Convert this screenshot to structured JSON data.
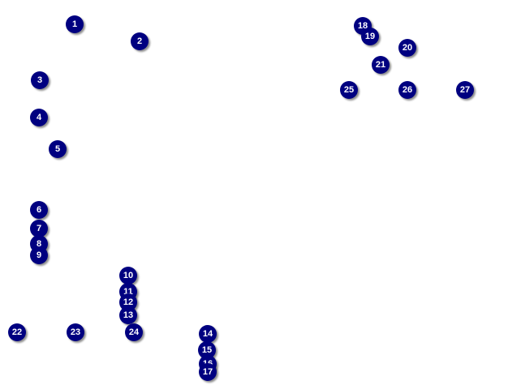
{
  "marker_color": "#000080",
  "label_color": "#ffffff",
  "markers": [
    "1",
    "2",
    "3",
    "4",
    "5",
    "6",
    "7",
    "8",
    "9",
    "10",
    "11",
    "12",
    "13",
    "14",
    "15",
    "16",
    "17",
    "18",
    "19",
    "20",
    "21",
    "22",
    "23",
    "24",
    "25",
    "26",
    "27"
  ]
}
